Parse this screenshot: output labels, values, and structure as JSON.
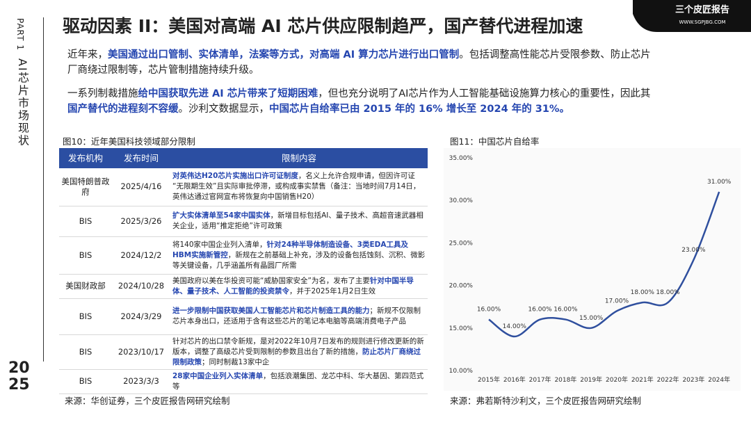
{
  "sidebar": {
    "part": "PART 1",
    "section": "AI芯片市场现状",
    "year_lines": [
      "20",
      "25"
    ]
  },
  "title": "驱动因素 II：美国对高端 AI 芯片供应限制趋严，国产替代进程加速",
  "logo": {
    "name": "三个皮匠报告",
    "url": "WWW.SGPJBG.COM"
  },
  "intro": [
    [
      {
        "text": "近年来，"
      },
      {
        "text": "美国通过出口管制、实体清单，法案等方式，对高端 AI 算力芯片进行出口管制",
        "em": true
      },
      {
        "text": "。包括调整高性能芯片受限参数、防止芯片厂商绕过限制等，芯片管制措施持续升级。"
      }
    ],
    [
      {
        "text": "一系列制裁措施"
      },
      {
        "text": "给中国获取先进 AI 芯片带来了短期困难",
        "em": true
      },
      {
        "text": "，但也充分说明了AI芯片作为人工智能基础设施算力核心的重要性，因此其"
      },
      {
        "text": "国产替代的进程刻不容缓",
        "em": true
      },
      {
        "text": "。沙利文数据显示，"
      },
      {
        "text": "中国芯片自给率已由 2015 年的 16% 增长至 2024 年的 31%。",
        "em": true
      }
    ]
  ],
  "table": {
    "caption": "图10：近年美国科技领域部分限制",
    "header": [
      "发布机构",
      "发布时间",
      "限制内容"
    ],
    "rows": [
      {
        "org": "美国特朗普政府",
        "date": "2025/4/16",
        "content": [
          {
            "text": "对英伟达H20芯片实施出口许可证制度",
            "em": true
          },
          {
            "text": "，名义上允许合规申请，但因许可证“无限期生效”且实际审批停滞，或构成事实禁售（备注：当地时间7月14日，英伟达通过官网宣布将恢复向中国销售H20）"
          }
        ]
      },
      {
        "org": "BIS",
        "date": "2025/3/26",
        "content": [
          {
            "text": "扩大实体清单至54家中国实体",
            "em": true
          },
          {
            "text": "，新增目标包括AI、量子技术、高超音速武器相关企业，适用“推定拒绝”许可政策"
          }
        ]
      },
      {
        "org": "BIS",
        "date": "2024/12/2",
        "content": [
          {
            "text": "将140家中国企业列入清单，"
          },
          {
            "text": "针对24种半导体制造设备、3类EDA工具及HBM实施新管控",
            "em": true
          },
          {
            "text": "，新规在之前基础上补充，涉及的设备包括蚀刻、沉积、微影等关键设备，几乎涵盖所有晶圆厂所需"
          }
        ]
      },
      {
        "org": "美国财政部",
        "date": "2024/10/28",
        "content": [
          {
            "text": "美国政府以美在华投资可能“威胁国家安全”为名，发布了主要"
          },
          {
            "text": "针对中国半导体、量子技术、人工智能的投资禁令",
            "em": true
          },
          {
            "text": "，并于2025年1月2日生效"
          }
        ]
      },
      {
        "org": "BIS",
        "date": "2024/3/29",
        "content": [
          {
            "text": "进一步限制中国获取美国人工智能芯片和芯片制造工具的能力",
            "em": true
          },
          {
            "text": "；新规不仅限制芯片本身出口，还适用于含有这些芯片的笔记本电脑等高端消费电子产品"
          }
        ]
      },
      {
        "org": "BIS",
        "date": "2023/10/17",
        "content": [
          {
            "text": "针对芯片的出口禁令新规，是对2022年10月7日发布的规则进行修改更新的新版本，调整了高级芯片受到限制的参数且出台了新的措施，"
          },
          {
            "text": "防止芯片厂商绕过限制政策",
            "em": true
          },
          {
            "text": "；同时制裁13家中企"
          }
        ]
      },
      {
        "org": "BIS",
        "date": "2023/3/3",
        "content": [
          {
            "text": "28家中国企业列入实体清单",
            "em": true
          },
          {
            "text": "，包括浪潮集团、龙芯中科、华大基因、第四范式等"
          }
        ]
      }
    ],
    "source": "来源：华创证券，三个皮匠报告网研究绘制"
  },
  "chart_data": {
    "type": "line",
    "title": "图11：中国芯片自给率",
    "source": "来源：弗若斯特沙利文，三个皮匠报告网研究绘制",
    "categories": [
      "2015年",
      "2016年",
      "2017年",
      "2018年",
      "2019年",
      "2020年",
      "2021年",
      "2022年",
      "2023年",
      "2024年"
    ],
    "values": [
      16,
      14,
      16,
      16,
      15,
      17,
      18,
      18,
      23,
      31
    ],
    "value_labels": [
      "16.00%",
      "14.00%",
      "16.00%",
      "16.00%",
      "15.00%",
      "17.00%",
      "18.00%",
      "18.00%",
      "23.00%",
      "31.00%"
    ],
    "color": "#2f4f9e",
    "ylim": [
      10,
      35
    ],
    "yticks": [
      {
        "value": 10,
        "label": "10.00%"
      },
      {
        "value": 15,
        "label": "15.00%"
      },
      {
        "value": 20,
        "label": "20.00%"
      },
      {
        "value": 25,
        "label": "25.00%"
      },
      {
        "value": 30,
        "label": "30.00%"
      },
      {
        "value": 35,
        "label": "35.00%"
      }
    ]
  }
}
